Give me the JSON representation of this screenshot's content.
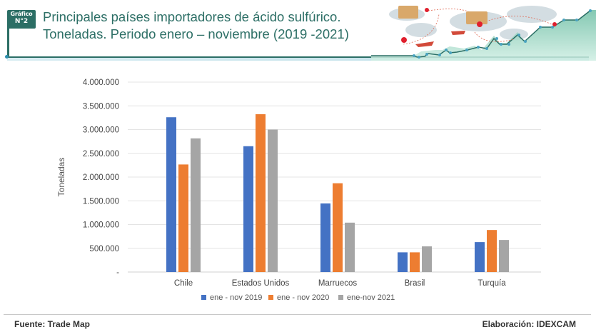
{
  "header": {
    "badge_line1": "Gráfico",
    "badge_line2": "N°2",
    "title_line1": "Principales países importadores de ácido sulfúrico.",
    "title_line2": "Toneladas. Periodo enero – noviembre (2019 -2021)"
  },
  "colors": {
    "brand": "#2b6e65",
    "series_2019": "#4472c4",
    "series_2020": "#ed7d31",
    "series_2021": "#a5a5a5"
  },
  "chart_data": {
    "type": "bar",
    "title": "Principales países importadores de ácido sulfúrico. Toneladas. Periodo enero – noviembre (2019 -2021)",
    "xlabel": "",
    "ylabel": "Toneladas",
    "ylim": [
      0,
      4000000
    ],
    "yticks": [
      0,
      500000,
      1000000,
      1500000,
      2000000,
      2500000,
      3000000,
      3500000,
      4000000
    ],
    "ytick_labels": [
      "-",
      "500.000",
      "1.000.000",
      "1.500.000",
      "2.000.000",
      "2.500.000",
      "3.000.000",
      "3.500.000",
      "4.000.000"
    ],
    "grid": true,
    "legend_position": "bottom",
    "categories": [
      "Chile",
      "Estados Unidos",
      "Marruecos",
      "Brasil",
      "Turquía"
    ],
    "series": [
      {
        "name": "ene - nov 2019",
        "color": "#4472c4",
        "values": [
          3260000,
          2650000,
          1445000,
          415000,
          630000
        ]
      },
      {
        "name": "ene - nov 2020",
        "color": "#ed7d31",
        "values": [
          2265000,
          3325000,
          1870000,
          415000,
          885000
        ]
      },
      {
        "name": "ene-nov 2021",
        "color": "#a5a5a5",
        "values": [
          2815000,
          3000000,
          1040000,
          540000,
          675000
        ]
      }
    ]
  },
  "footer": {
    "source": "Fuente:  Trade Map",
    "credit": "Elaboración: IDEXCAM"
  }
}
